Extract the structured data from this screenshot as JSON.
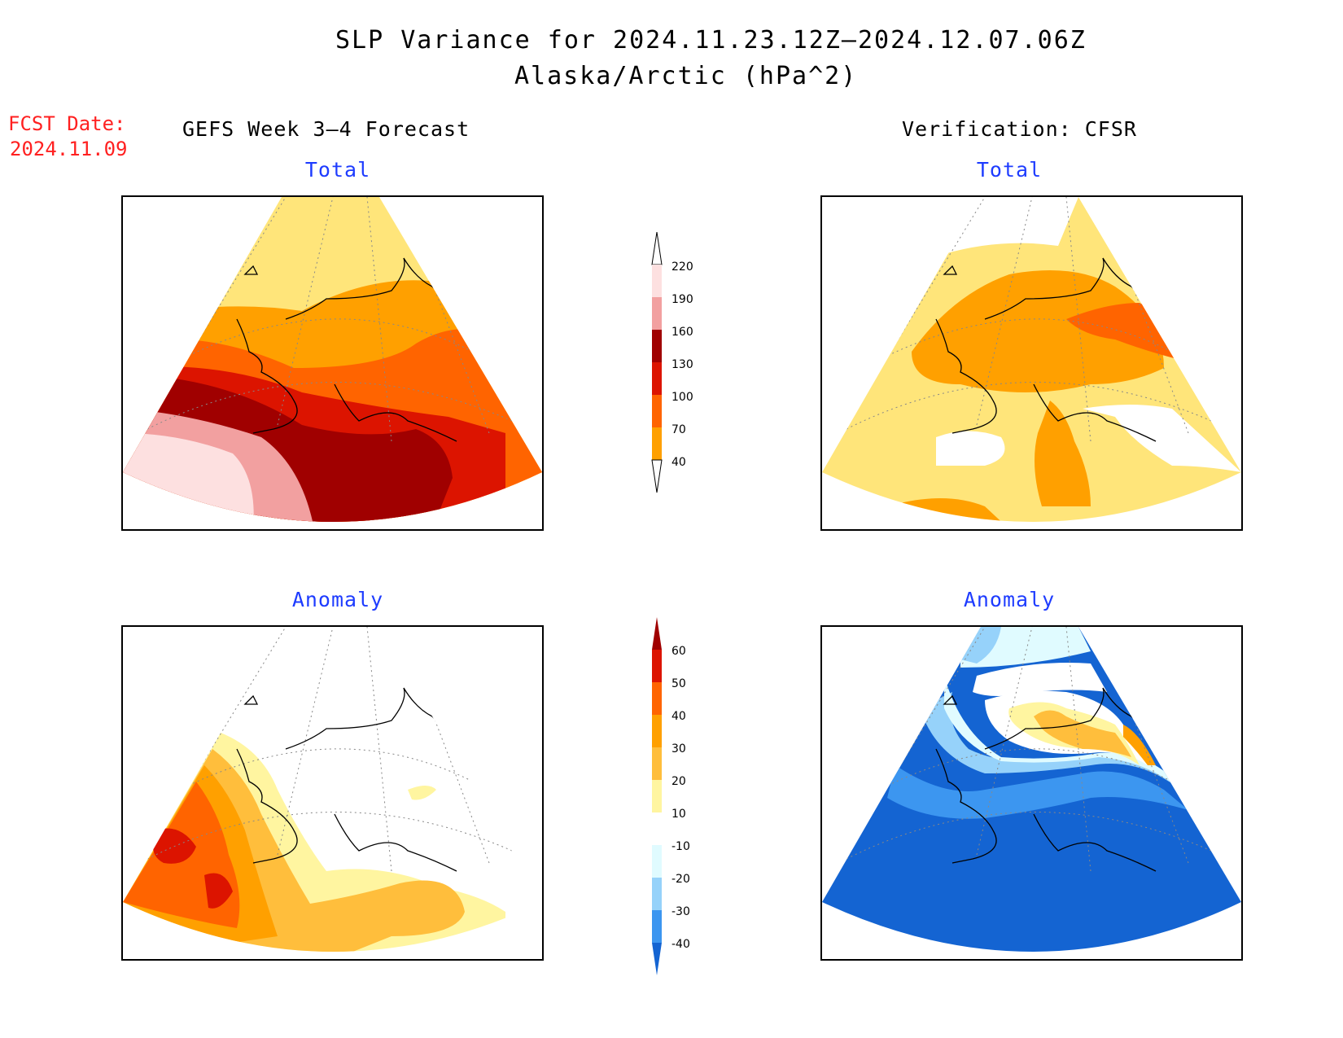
{
  "title": {
    "line1": "SLP Variance for 2024.11.23.12Z–2024.12.07.06Z",
    "line2": "Alaska/Arctic (hPa^2)"
  },
  "forecast_date": {
    "label": "FCST Date:",
    "value": "2024.11.09"
  },
  "columns": {
    "left": "GEFS Week 3–4 Forecast",
    "right": "Verification: CFSR"
  },
  "panels": {
    "top_left": "Total",
    "top_right": "Total",
    "bottom_left": "Anomaly",
    "bottom_right": "Anomaly"
  },
  "colorbars": {
    "total": {
      "ticks": [
        "220",
        "190",
        "160",
        "130",
        "100",
        "70",
        "40"
      ],
      "colors": [
        "#fde0e0",
        "#f2a0a0",
        "#a00000",
        "#dc1400",
        "#ff6400",
        "#ffa000",
        "#ffe57a"
      ]
    },
    "anomaly": {
      "ticks": [
        "60",
        "50",
        "40",
        "30",
        "20",
        "10",
        "-10",
        "-20",
        "-30",
        "-40"
      ],
      "colors": [
        "#a00000",
        "#dc1400",
        "#ff6400",
        "#ffa000",
        "#ffbe3c",
        "#fff5a0",
        "#ffffff",
        "#e0fbff",
        "#96d2fa",
        "#3c96f0",
        "#1464d2"
      ]
    }
  }
}
